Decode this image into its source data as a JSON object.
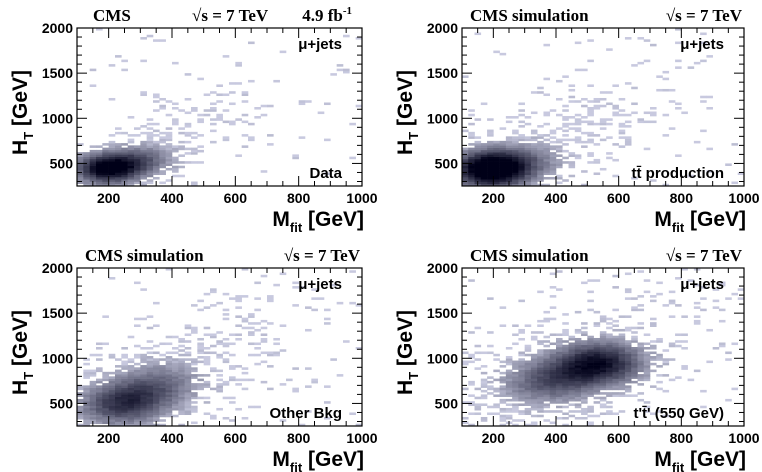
{
  "chart_data": [
    {
      "type": "heatmap",
      "header_left": "CMS",
      "header_mid": "√s = 7 TeV",
      "header_right": "4.9 fb",
      "header_right_sup": "-1",
      "channel_label": "μ+jets",
      "sample_label": "Data",
      "xlabel_main": "M",
      "xlabel_sub": "fit",
      "xlabel_unit": " [GeV]",
      "ylabel_main": "H",
      "ylabel_sub": "T",
      "ylabel_unit": " [GeV]",
      "xlim": [
        100,
        1000
      ],
      "ylim": [
        250,
        2000
      ],
      "xticks": [
        "200",
        "400",
        "600",
        "800",
        "1000"
      ],
      "yticks": [
        "500",
        "1000",
        "1500",
        "2000"
      ],
      "colors": {
        "low": "#e8eaff",
        "high": "#000018"
      },
      "hotspots": [
        {
          "x": 190,
          "y": 440,
          "w": 2.2
        },
        {
          "x": 260,
          "y": 500,
          "w": 1.0
        },
        {
          "x": 330,
          "y": 560,
          "w": 0.5
        }
      ],
      "spread": 1.0
    },
    {
      "type": "heatmap",
      "header_left": "CMS simulation",
      "header_mid": "√s = 7 TeV",
      "header_right": "",
      "header_right_sup": "",
      "channel_label": "μ+jets",
      "sample_label": "tt̄ production",
      "xlabel_main": "M",
      "xlabel_sub": "fit",
      "xlabel_unit": " [GeV]",
      "ylabel_main": "H",
      "ylabel_sub": "T",
      "ylabel_unit": " [GeV]",
      "xlim": [
        100,
        1000
      ],
      "ylim": [
        250,
        2000
      ],
      "xticks": [
        "200",
        "400",
        "600",
        "800",
        "1000"
      ],
      "yticks": [
        "500",
        "1000",
        "1500",
        "2000"
      ],
      "colors": {
        "low": "#e8eaff",
        "high": "#000018"
      },
      "hotspots": [
        {
          "x": 185,
          "y": 430,
          "w": 2.5
        },
        {
          "x": 240,
          "y": 480,
          "w": 1.0
        },
        {
          "x": 330,
          "y": 560,
          "w": 0.4
        }
      ],
      "spread": 1.3
    },
    {
      "type": "heatmap",
      "header_left": "CMS simulation",
      "header_mid": "√s = 7 TeV",
      "header_right": "",
      "header_right_sup": "",
      "channel_label": "μ+jets",
      "sample_label": "Other Bkg",
      "xlabel_main": "M",
      "xlabel_sub": "fit",
      "xlabel_unit": " [GeV]",
      "ylabel_main": "H",
      "ylabel_sub": "T",
      "ylabel_unit": " [GeV]",
      "xlim": [
        100,
        1000
      ],
      "ylim": [
        250,
        2000
      ],
      "xticks": [
        "200",
        "400",
        "600",
        "800",
        "1000"
      ],
      "yticks": [
        "500",
        "1000",
        "1500",
        "2000"
      ],
      "colors": {
        "low": "#e8eaff",
        "high": "#000018"
      },
      "hotspots": [
        {
          "x": 230,
          "y": 470,
          "w": 1.2
        },
        {
          "x": 300,
          "y": 600,
          "w": 0.9
        },
        {
          "x": 380,
          "y": 760,
          "w": 0.6
        }
      ],
      "spread": 1.5
    },
    {
      "type": "heatmap",
      "header_left": "CMS simulation",
      "header_mid": "√s = 7 TeV",
      "header_right": "",
      "header_right_sup": "",
      "channel_label": "μ+jets",
      "sample_label": "t't̄' (550 GeV)",
      "xlabel_main": "M",
      "xlabel_sub": "fit",
      "xlabel_unit": " [GeV]",
      "ylabel_main": "H",
      "ylabel_sub": "T",
      "ylabel_unit": " [GeV]",
      "xlim": [
        100,
        1000
      ],
      "ylim": [
        250,
        2000
      ],
      "xticks": [
        "200",
        "400",
        "600",
        "800",
        "1000"
      ],
      "yticks": [
        "500",
        "1000",
        "1500",
        "2000"
      ],
      "colors": {
        "low": "#e8eaff",
        "high": "#000018"
      },
      "hotspots": [
        {
          "x": 540,
          "y": 950,
          "w": 2.0
        },
        {
          "x": 420,
          "y": 800,
          "w": 1.0
        },
        {
          "x": 330,
          "y": 680,
          "w": 0.5
        }
      ],
      "spread": 1.6
    }
  ]
}
